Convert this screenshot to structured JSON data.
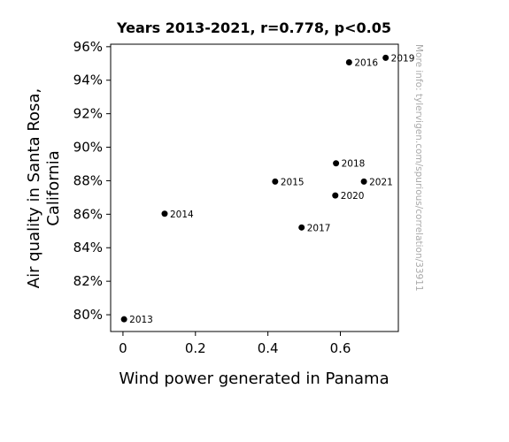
{
  "chart_data": {
    "type": "scatter",
    "title": "Years 2013-2021, r=0.778, p<0.05",
    "xlabel": "Wind power generated in Panama",
    "ylabel_line1": "Air quality in Santa Rosa,",
    "ylabel_line2": "California",
    "xlim": [
      -0.034,
      0.76
    ],
    "ylim": [
      79.0,
      96.15
    ],
    "xticks": [
      0,
      0.2,
      0.4,
      0.6
    ],
    "xtick_labels": [
      "0",
      "0.2",
      "0.4",
      "0.6"
    ],
    "yticks": [
      80,
      82,
      84,
      86,
      88,
      90,
      92,
      94,
      96
    ],
    "ytick_labels": [
      "80%",
      "82%",
      "84%",
      "86%",
      "88%",
      "90%",
      "92%",
      "94%",
      "96%"
    ],
    "grid": false,
    "marker_color": "#000000",
    "points": [
      {
        "label": "2013",
        "x": 0.003,
        "y": 79.73
      },
      {
        "label": "2014",
        "x": 0.115,
        "y": 86.03
      },
      {
        "label": "2015",
        "x": 0.42,
        "y": 87.95
      },
      {
        "label": "2016",
        "x": 0.624,
        "y": 95.07
      },
      {
        "label": "2017",
        "x": 0.493,
        "y": 85.21
      },
      {
        "label": "2018",
        "x": 0.588,
        "y": 89.04
      },
      {
        "label": "2019",
        "x": 0.725,
        "y": 95.34
      },
      {
        "label": "2020",
        "x": 0.586,
        "y": 87.12
      },
      {
        "label": "2021",
        "x": 0.665,
        "y": 87.95
      }
    ]
  },
  "watermark": "More info: tylervigen.com/spurious/correlation/33911"
}
